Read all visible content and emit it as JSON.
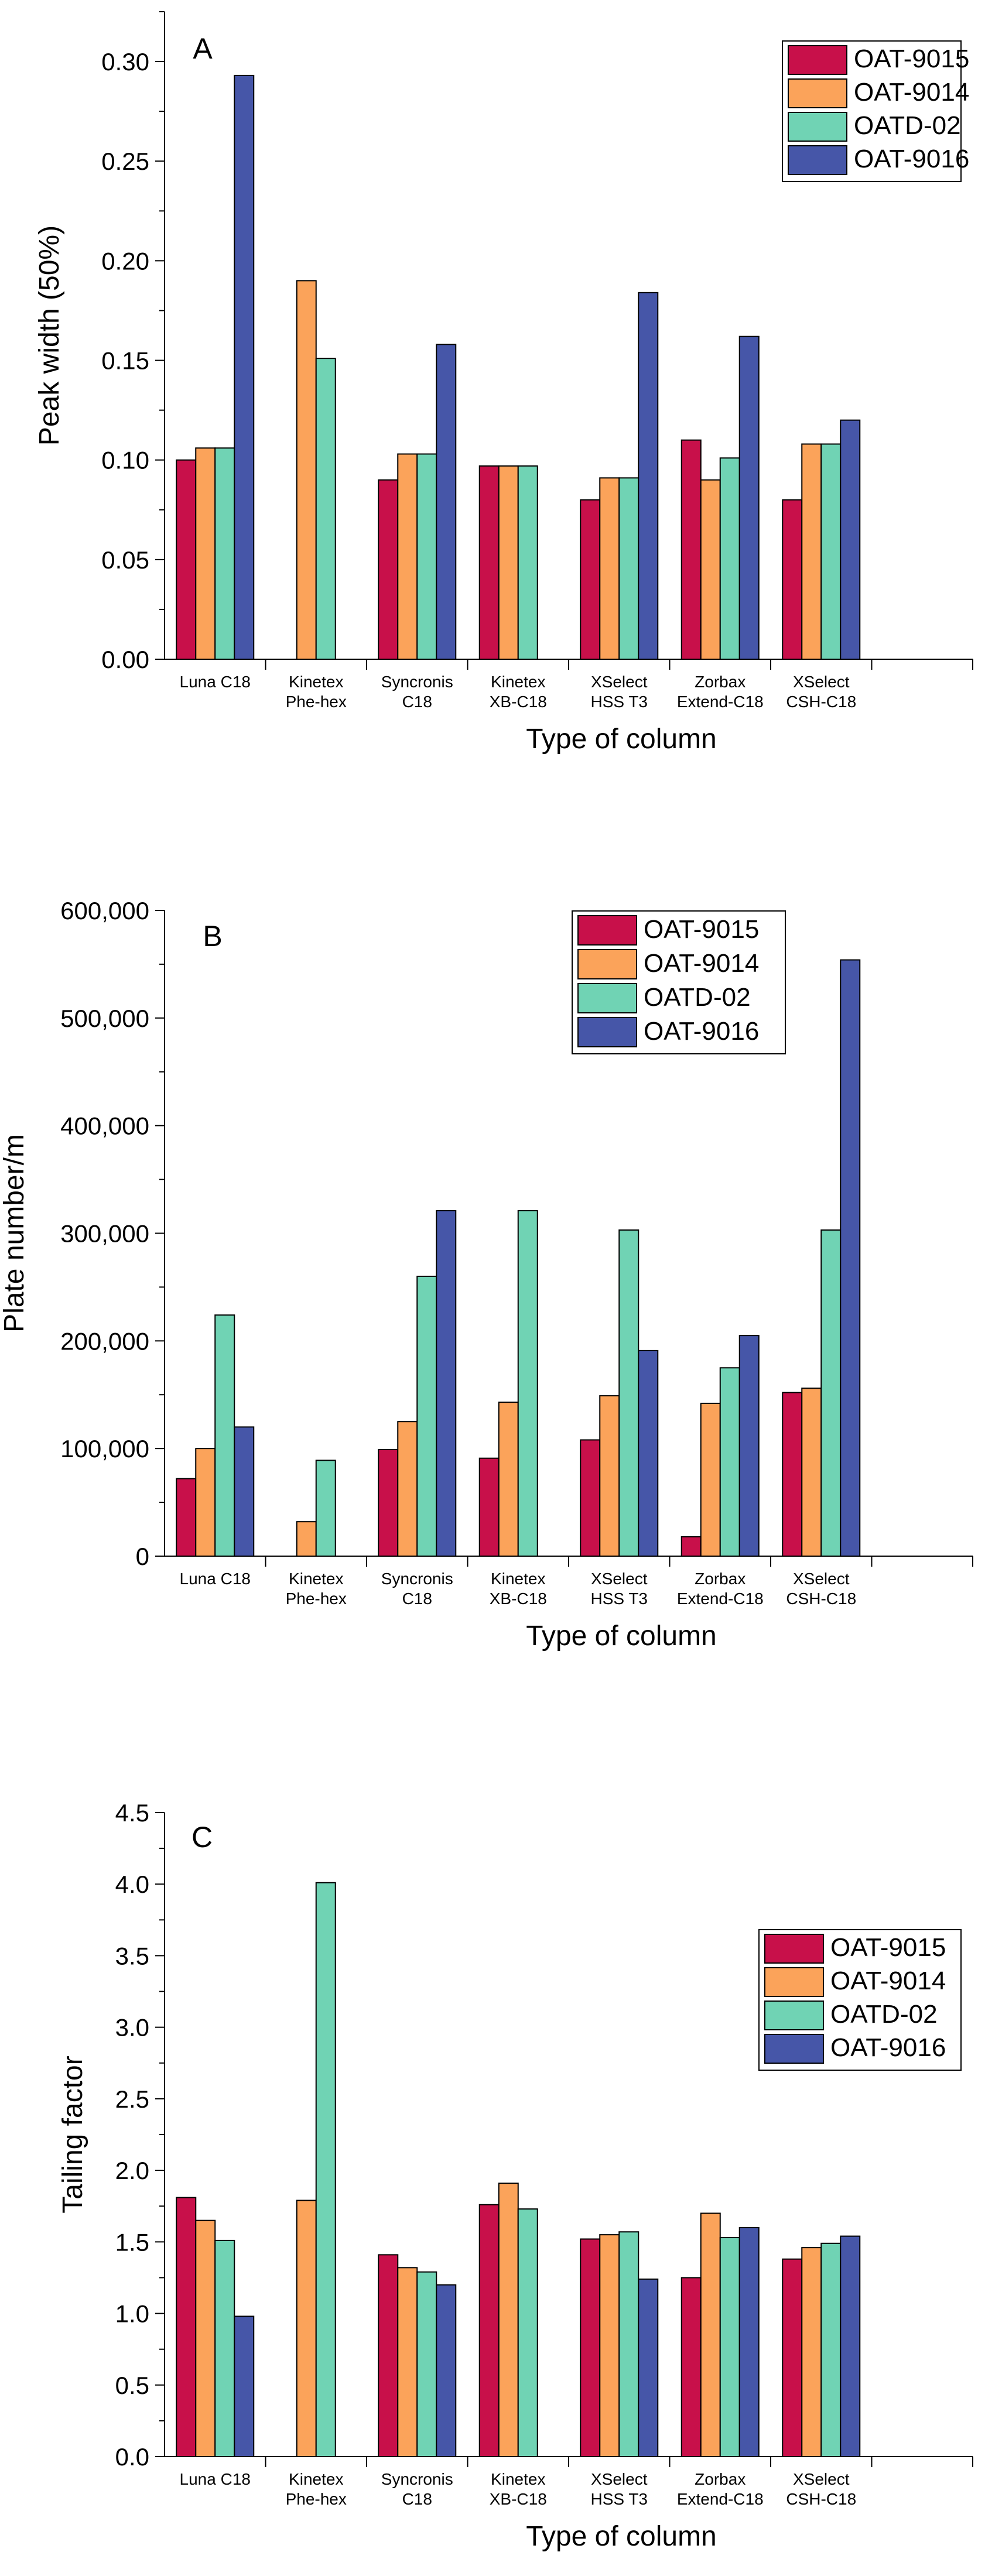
{
  "chart_data": [
    {
      "type": "bar",
      "panel_label": "A",
      "categories": [
        [
          "Luna C18"
        ],
        [
          "Kinetex",
          "Phe-hex"
        ],
        [
          "Syncronis",
          "C18"
        ],
        [
          "Kinetex",
          "XB-C18"
        ],
        [
          "XSelect",
          "HSS T3"
        ],
        [
          "Zorbax",
          "Extend-C18"
        ],
        [
          "XSelect",
          "CSH-C18"
        ]
      ],
      "series": [
        {
          "name": "OAT-9015",
          "values": [
            0.1,
            null,
            0.09,
            0.097,
            0.08,
            0.11,
            0.08
          ]
        },
        {
          "name": "OAT-9014",
          "values": [
            0.106,
            0.19,
            0.103,
            0.097,
            0.091,
            0.09,
            0.108
          ]
        },
        {
          "name": "OATD-02",
          "values": [
            0.106,
            0.151,
            0.103,
            0.097,
            0.091,
            0.101,
            0.108
          ]
        },
        {
          "name": "OAT-9016",
          "values": [
            0.293,
            null,
            0.158,
            null,
            0.184,
            0.162,
            0.12
          ]
        }
      ],
      "xlabel": "Type of column",
      "ylabel": "Peak width (50%)",
      "ylim": [
        0,
        0.325
      ],
      "yticks": [
        0,
        0.05,
        0.1,
        0.15,
        0.2,
        0.25,
        0.3
      ],
      "ytick_labels": [
        "0.00",
        "0.05",
        "0.10",
        "0.15",
        "0.20",
        "0.25",
        "0.30"
      ],
      "legend_position": "top-right"
    },
    {
      "type": "bar",
      "panel_label": "B",
      "categories": [
        [
          "Luna C18"
        ],
        [
          "Kinetex",
          "Phe-hex"
        ],
        [
          "Syncronis",
          "C18"
        ],
        [
          "Kinetex",
          "XB-C18"
        ],
        [
          "XSelect",
          "HSS T3"
        ],
        [
          "Zorbax",
          "Extend-C18"
        ],
        [
          "XSelect",
          "CSH-C18"
        ]
      ],
      "series": [
        {
          "name": "OAT-9015",
          "values": [
            72000,
            null,
            99000,
            91000,
            108000,
            18000,
            152000
          ]
        },
        {
          "name": "OAT-9014",
          "values": [
            100000,
            32000,
            125000,
            143000,
            149000,
            142000,
            156000
          ]
        },
        {
          "name": "OATD-02",
          "values": [
            224000,
            89000,
            260000,
            321000,
            303000,
            175000,
            303000
          ]
        },
        {
          "name": "OAT-9016",
          "values": [
            120000,
            null,
            321000,
            null,
            191000,
            205000,
            554000
          ]
        }
      ],
      "xlabel": "Type of column",
      "ylabel": "Plate number/m",
      "ylim": [
        0,
        600000
      ],
      "yticks": [
        0,
        100000,
        200000,
        300000,
        400000,
        500000,
        600000
      ],
      "ytick_labels": [
        "0",
        "100,000",
        "200,000",
        "300,000",
        "400,000",
        "500,000",
        "600,000"
      ],
      "legend_position": "top-right"
    },
    {
      "type": "bar",
      "panel_label": "C",
      "categories": [
        [
          "Luna C18"
        ],
        [
          "Kinetex",
          "Phe-hex"
        ],
        [
          "Syncronis",
          "C18"
        ],
        [
          "Kinetex",
          "XB-C18"
        ],
        [
          "XSelect",
          "HSS T3"
        ],
        [
          "Zorbax",
          "Extend-C18"
        ],
        [
          "XSelect",
          "CSH-C18"
        ]
      ],
      "series": [
        {
          "name": "OAT-9015",
          "values": [
            1.81,
            null,
            1.41,
            1.76,
            1.52,
            1.25,
            1.38
          ]
        },
        {
          "name": "OAT-9014",
          "values": [
            1.65,
            1.79,
            1.32,
            1.91,
            1.55,
            1.7,
            1.46
          ]
        },
        {
          "name": "OATD-02",
          "values": [
            1.51,
            4.01,
            1.29,
            1.73,
            1.57,
            1.53,
            1.49
          ]
        },
        {
          "name": "OAT-9016",
          "values": [
            0.98,
            null,
            1.2,
            null,
            1.24,
            1.6,
            1.54
          ]
        }
      ],
      "xlabel": "Type of column",
      "ylabel": "Tailing factor",
      "ylim": [
        0,
        4.5
      ],
      "yticks": [
        0,
        0.5,
        1.0,
        1.5,
        2.0,
        2.5,
        3.0,
        3.5,
        4.0,
        4.5
      ],
      "ytick_labels": [
        "0.0",
        "0.5",
        "1.0",
        "1.5",
        "2.0",
        "2.5",
        "3.0",
        "3.5",
        "4.0",
        "4.5"
      ],
      "legend_position": "top-right"
    }
  ],
  "colors": {
    "OAT-9015": "#c8104a",
    "OAT-9014": "#fba35a",
    "OATD-02": "#70d3b4",
    "OAT-9016": "#4656a8"
  }
}
